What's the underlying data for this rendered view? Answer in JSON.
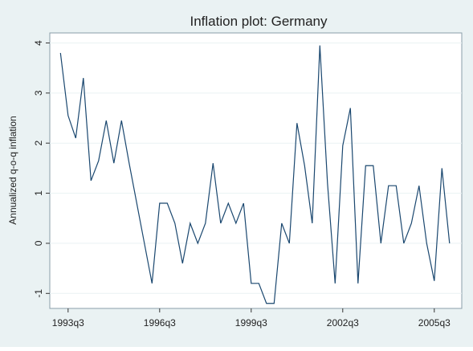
{
  "chart_data": {
    "type": "line",
    "title": "Inflation plot: Germany",
    "y_label": "Annualized q-o-q inflation",
    "x": [
      1993.25,
      1993.5,
      1993.75,
      1994,
      1994.25,
      1994.5,
      1994.75,
      1995,
      1995.25,
      1995.5,
      1995.75,
      1996,
      1996.25,
      1996.5,
      1996.75,
      1997,
      1997.25,
      1997.5,
      1997.75,
      1998,
      1998.25,
      1998.5,
      1998.75,
      1999,
      1999.25,
      1999.5,
      1999.75,
      2000,
      2000.25,
      2000.5,
      2000.75,
      2001,
      2001.25,
      2001.5,
      2001.75,
      2002,
      2002.25,
      2002.5,
      2002.75,
      2003,
      2003.25,
      2003.5,
      2003.75,
      2004,
      2004.25,
      2004.5,
      2004.75,
      2005,
      2005.25,
      2005.5,
      2005.75,
      2006
    ],
    "series": [
      {
        "name": "Inflation",
        "color": "#1a476f",
        "values": [
          3.8,
          2.55,
          2.1,
          3.3,
          1.25,
          1.65,
          2.45,
          1.6,
          2.45,
          1.6,
          0.8,
          0,
          -0.8,
          0.8,
          0.8,
          0.4,
          -0.4,
          0.4,
          0,
          0.4,
          1.6,
          0.4,
          0.8,
          0.4,
          0.8,
          -0.8,
          -0.8,
          -1.2,
          -1.2,
          0.4,
          0,
          2.4,
          1.55,
          0.4,
          3.95,
          1.2,
          -0.8,
          1.95,
          2.7,
          -0.8,
          1.55,
          1.55,
          0,
          1.15,
          1.15,
          0,
          0.4,
          1.15,
          0,
          -0.75,
          1.5,
          0
        ]
      }
    ],
    "xlim": [
      1992.9,
      2006.4
    ],
    "ylim": [
      -1.3,
      4.2
    ],
    "xticks": [
      {
        "value": 1993.5,
        "label": "1993q3"
      },
      {
        "value": 1996.5,
        "label": "1996q3"
      },
      {
        "value": 1999.5,
        "label": "1999q3"
      },
      {
        "value": 2002.5,
        "label": "2002q3"
      },
      {
        "value": 2005.5,
        "label": "2005q3"
      }
    ],
    "yticks": [
      -1,
      0,
      1,
      2,
      3,
      4
    ],
    "grid": true
  }
}
